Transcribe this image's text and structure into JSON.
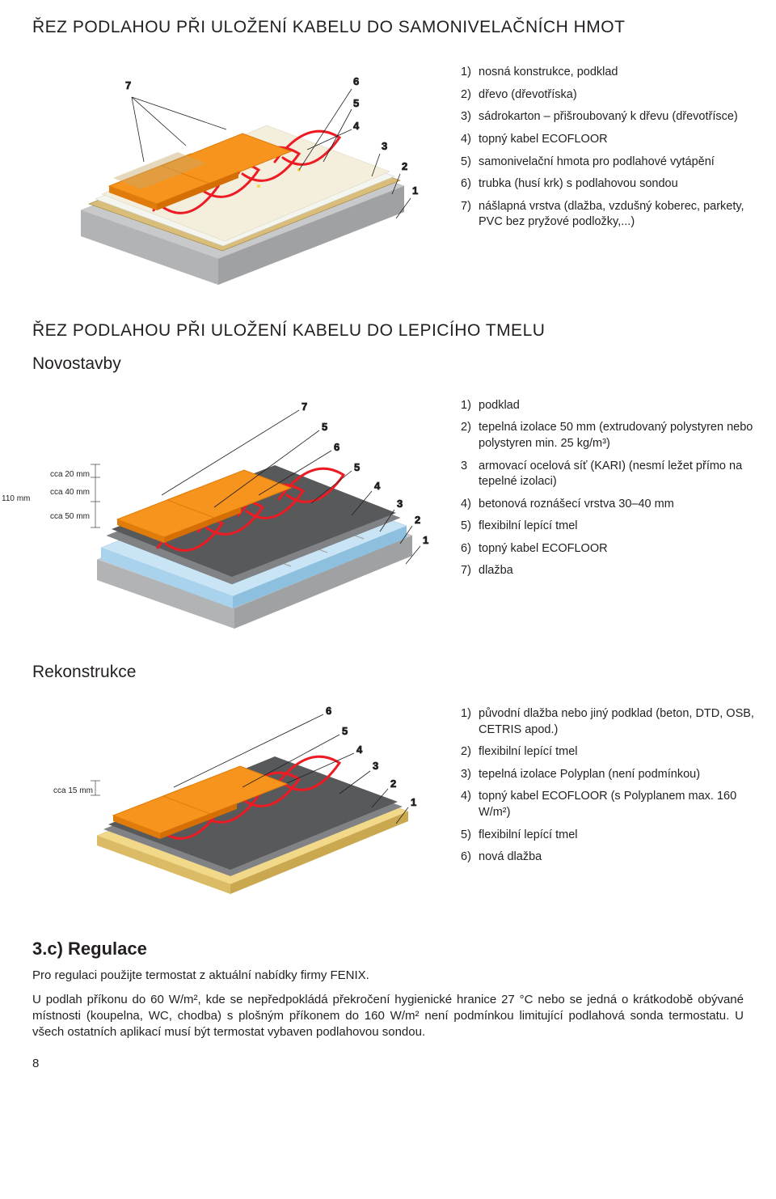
{
  "colors": {
    "orange": "#f7941d",
    "darkorange": "#e07c0b",
    "grey_concrete": "#c8c9ca",
    "grey_mortar": "#808285",
    "grey_dark": "#58595b",
    "blue_insul": "#c9e4f5",
    "board": "#e6d4a8",
    "board_dark": "#c5a96a",
    "osb": "#d9bd7b",
    "osb_stroke": "#a07e3a",
    "cable": "#ed1c24",
    "leader": "#231f20",
    "rebar": "#a7a9ac"
  },
  "section1": {
    "title": "ŘEZ PODLAHOU PŘI ULOŽENÍ KABELU DO SAMONIVELAČNÍCH HMOT",
    "legend": [
      "nosná konstrukce, podklad",
      "dřevo (dřevotříska)",
      "sádrokarton – přišroubovaný k dřevu (dřevotřísce)",
      "topný kabel ECOFLOOR",
      "samonivelační hmota pro podlahové vytápění",
      "trubka (husí krk) s podlahovou sondou",
      "nášlapná vrstva (dlažba, vzdušný koberec, parkety, PVC bez pryžové podložky,...)"
    ],
    "callouts": [
      "7",
      "6",
      "5",
      "4",
      "3",
      "2",
      "1"
    ]
  },
  "section2": {
    "title": "ŘEZ PODLAHOU PŘI ULOŽENÍ KABELU DO LEPICÍHO TMELU",
    "sub_a": "Novostavby",
    "dim_total": "110 mm",
    "dims": [
      "cca 20 mm",
      "cca 40 mm",
      "cca 50 mm"
    ],
    "legend_a": [
      {
        "n": "1)",
        "t": "podklad"
      },
      {
        "n": "2)",
        "t": "tepelná izolace 50 mm (extrudovaný polystyren nebo polystyren min. 25 kg/m³)"
      },
      {
        "n": "3",
        "t": "armovací ocelová síť (KARI) (nesmí ležet přímo na tepelné izolaci)"
      },
      {
        "n": "4)",
        "t": "betonová roznášecí vrstva 30–40 mm"
      },
      {
        "n": "5)",
        "t": "flexibilní lepící tmel"
      },
      {
        "n": "6)",
        "t": "topný kabel ECOFLOOR"
      },
      {
        "n": "7)",
        "t": "dlažba"
      }
    ],
    "callouts_a": [
      "7",
      "5",
      "6",
      "5",
      "4",
      "3",
      "2",
      "1"
    ],
    "sub_b": "Rekonstrukce",
    "dim_b": "cca 15 mm",
    "legend_b": [
      "původní dlažba nebo jiný podklad (beton, DTD, OSB, CETRIS apod.)",
      "flexibilní lepící tmel",
      "tepelná izolace Polyplan (není podmínkou)",
      "topný kabel ECOFLOOR (s Polyplanem max. 160 W/m²)",
      "flexibilní lepící tmel",
      "nová dlažba"
    ],
    "callouts_b": [
      "6",
      "5",
      "4",
      "3",
      "2",
      "1"
    ]
  },
  "regulation": {
    "heading": "3.c) Regulace",
    "p1": "Pro regulaci použijte termostat z aktuální nabídky firmy FENIX.",
    "p2": "U podlah příkonu do 60 W/m², kde se nepředpokládá překročení hygienické hranice 27 °C nebo se jedná o krátkodobě obývané místnosti (koupelna, WC, chodba) s plošným příkonem do 160 W/m² není podmínkou limitující podlahová sonda termostatu. U všech ostatních aplikací musí být termostat vybaven podlahovou sondou."
  },
  "page_number": "8"
}
